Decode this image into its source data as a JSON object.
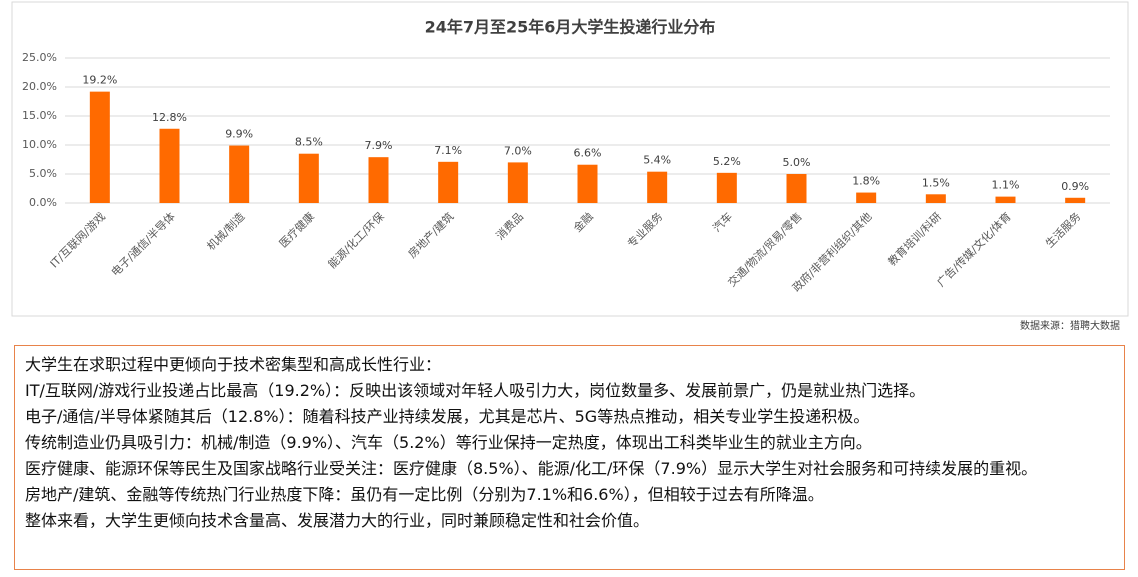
{
  "chart_data": {
    "type": "bar",
    "title": "24年7月至25年6月大学生投递行业分布",
    "categories": [
      "IT/互联网/游戏",
      "电子/通信/半导体",
      "机械/制造",
      "医疗健康",
      "能源/化工/环保",
      "房地产/建筑",
      "消费品",
      "金融",
      "专业服务",
      "汽车",
      "交通/物流/贸易/零售",
      "政府/非营利组织/其他",
      "教育培训/科研",
      "广告/传媒/文化/体育",
      "生活服务"
    ],
    "values": [
      19.2,
      12.8,
      9.9,
      8.5,
      7.9,
      7.1,
      7.0,
      6.6,
      5.4,
      5.2,
      5.0,
      1.8,
      1.5,
      1.1,
      0.9
    ],
    "value_labels": [
      "19.2%",
      "12.8%",
      "9.9%",
      "8.5%",
      "7.9%",
      "7.1%",
      "7.0%",
      "6.6%",
      "5.4%",
      "5.2%",
      "5.0%",
      "1.8%",
      "1.5%",
      "1.1%",
      "0.9%"
    ],
    "color": "#ff6a00",
    "ylim": [
      0,
      25
    ],
    "yticks": [
      {
        "value": 0,
        "label": "0.0%"
      },
      {
        "value": 5,
        "label": "5.0%"
      },
      {
        "value": 10,
        "label": "10.0%"
      },
      {
        "value": 15,
        "label": "15.0%"
      },
      {
        "value": 20,
        "label": "20.0%"
      },
      {
        "value": 25,
        "label": "25.0%"
      }
    ],
    "grid": true,
    "source": "数据来源：猎聘大数据"
  },
  "summary": {
    "lines": [
      "大学生在求职过程中更倾向于技术密集型和高成长性行业：",
      "IT/互联网/游戏行业投递占比最高（19.2%）：反映出该领域对年轻人吸引力大，岗位数量多、发展前景广，仍是就业热门选择。",
      "电子/通信/半导体紧随其后（12.8%）：随着科技产业持续发展，尤其是芯片、5G等热点推动，相关专业学生投递积极。",
      "传统制造业仍具吸引力：机械/制造（9.9%）、汽车（5.2%）等行业保持一定热度，体现出工科类毕业生的就业主方向。",
      "医疗健康、能源环保等民生及国家战略行业受关注：医疗健康（8.5%）、能源/化工/环保（7.9%）显示大学生对社会服务和可持续发展的重视。",
      "房地产/建筑、金融等传统热门行业热度下降：虽仍有一定比例（分别为7.1%和6.6%），但相较于过去有所降温。",
      "整体来看，大学生更倾向技术含量高、发展潜力大的行业，同时兼顾稳定性和社会价值。"
    ]
  }
}
